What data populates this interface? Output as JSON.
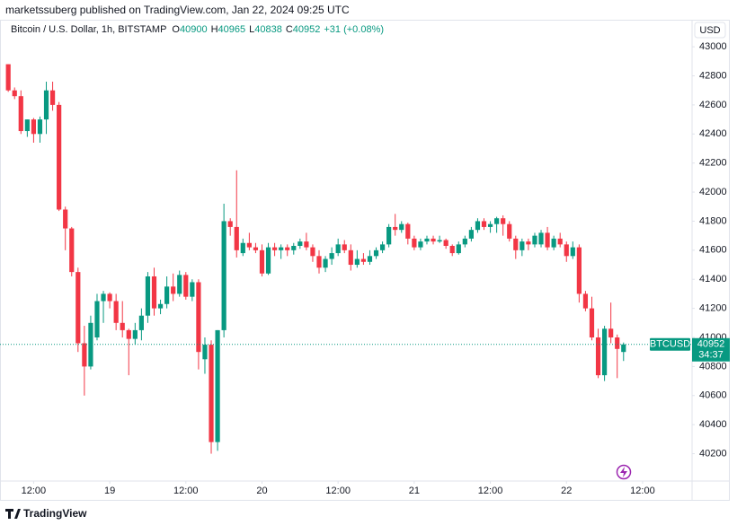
{
  "header": {
    "attribution": "marketssuberg published on TradingView.com, Jan 22, 2024 09:25 UTC"
  },
  "footer": {
    "brand": "TradingView"
  },
  "chart_data": {
    "type": "candlestick",
    "title": "Bitcoin / U.S. Dollar, 1h, BITSTAMP",
    "ohlc_labels": [
      "O",
      "H",
      "L",
      "C"
    ],
    "change": "+31 (+0.08%)",
    "symbol": "BTCUSD",
    "currency": "USD",
    "countdown": "34:37",
    "up_color": "#089981",
    "down_color": "#f23645",
    "open": [
      42880,
      42700,
      42660,
      42420,
      42500,
      42400,
      42500,
      42700,
      42600,
      41880,
      41750,
      41450,
      40960,
      40800,
      41000,
      41250,
      41300,
      41250,
      41100,
      41050,
      40990,
      41050,
      41150,
      41420,
      41200,
      41230,
      41350,
      41300,
      41430,
      41280,
      41380,
      40850,
      40950,
      40280,
      41050,
      41800,
      41760,
      41580,
      41650,
      41620,
      41600,
      41440,
      41620,
      41600,
      41620,
      41600,
      41630,
      41660,
      41620,
      41560,
      41480,
      41540,
      41580,
      41640,
      41600,
      41500,
      41540,
      41520,
      41560,
      41600,
      41640,
      41760,
      41740,
      41780,
      41680,
      41620,
      41660,
      41680,
      41660,
      41670,
      41630,
      41580,
      41640,
      41680,
      41740,
      41800,
      41760,
      41780,
      41820,
      41780,
      41680,
      41600,
      41660,
      41640,
      41640,
      41720,
      41620,
      41680,
      41640,
      41560,
      41620,
      41300,
      41200,
      41000,
      40740,
      41060,
      41000,
      40900
    ],
    "high": [
      42880,
      42720,
      42700,
      42500,
      42510,
      42520,
      42760,
      42760,
      42620,
      41900,
      41760,
      41480,
      41080,
      41150,
      41300,
      41320,
      41310,
      41300,
      41250,
      41060,
      41100,
      41200,
      41450,
      41480,
      41260,
      41420,
      41440,
      41460,
      41450,
      41400,
      41400,
      41000,
      40980,
      41050,
      41920,
      41820,
      42150,
      41680,
      41720,
      41650,
      41640,
      41650,
      41650,
      41640,
      41640,
      41650,
      41680,
      41720,
      41640,
      41600,
      41560,
      41620,
      41680,
      41670,
      41640,
      41600,
      41580,
      41600,
      41620,
      41660,
      41780,
      41850,
      41800,
      41790,
      41700,
      41680,
      41700,
      41700,
      41700,
      41680,
      41640,
      41660,
      41700,
      41760,
      41820,
      41820,
      41800,
      41830,
      41840,
      41800,
      41700,
      41680,
      41680,
      41720,
      41740,
      41760,
      41700,
      41720,
      41660,
      41660,
      41640,
      41320,
      41280,
      41060,
      41080,
      41240,
      41020,
      40965
    ],
    "low": [
      42690,
      42640,
      42400,
      42380,
      42340,
      42340,
      42400,
      42560,
      41870,
      41600,
      41420,
      40900,
      40600,
      40780,
      40980,
      41100,
      41200,
      41050,
      41000,
      40740,
      40950,
      40980,
      41100,
      41150,
      41160,
      41200,
      41250,
      41280,
      41260,
      41250,
      40780,
      40750,
      40200,
      40220,
      41000,
      41700,
      41550,
      41560,
      41600,
      41580,
      41420,
      41430,
      41560,
      41540,
      41560,
      41570,
      41610,
      41600,
      41520,
      41440,
      41450,
      41500,
      41560,
      41580,
      41460,
      41480,
      41500,
      41500,
      41540,
      41580,
      41620,
      41700,
      41720,
      41640,
      41600,
      41600,
      41640,
      41640,
      41650,
      41610,
      41560,
      41570,
      41620,
      41660,
      41720,
      41740,
      41720,
      41720,
      41700,
      41660,
      41540,
      41560,
      41600,
      41620,
      41620,
      41600,
      41600,
      41620,
      41520,
      41540,
      41240,
      41180,
      40980,
      40720,
      40700,
      40960,
      40720,
      40838
    ],
    "close": [
      42700,
      42660,
      42420,
      42500,
      42400,
      42500,
      42700,
      42600,
      41880,
      41750,
      41450,
      40960,
      40800,
      41100,
      41250,
      41300,
      41250,
      41100,
      41050,
      40990,
      41050,
      41150,
      41420,
      41200,
      41230,
      41350,
      41300,
      41430,
      41280,
      41380,
      40900,
      40950,
      40280,
      41050,
      41800,
      41760,
      41600,
      41650,
      41620,
      41600,
      41440,
      41620,
      41600,
      41620,
      41600,
      41630,
      41660,
      41620,
      41560,
      41480,
      41540,
      41580,
      41640,
      41600,
      41500,
      41540,
      41520,
      41560,
      41600,
      41640,
      41760,
      41740,
      41780,
      41680,
      41620,
      41660,
      41680,
      41660,
      41670,
      41630,
      41580,
      41640,
      41680,
      41740,
      41800,
      41760,
      41780,
      41820,
      41780,
      41680,
      41600,
      41660,
      41640,
      41700,
      41720,
      41620,
      41680,
      41640,
      41560,
      41620,
      41300,
      41200,
      41000,
      40740,
      41060,
      41000,
      40921,
      40952
    ],
    "xlim": [
      -1.3,
      107.8
    ],
    "xticks": [
      {
        "value": 4,
        "label": "12:00"
      },
      {
        "value": 16,
        "label": "19"
      },
      {
        "value": 28,
        "label": "12:00"
      },
      {
        "value": 40,
        "label": "20"
      },
      {
        "value": 52,
        "label": "12:00"
      },
      {
        "value": 64,
        "label": "21"
      },
      {
        "value": 76,
        "label": "12:00"
      },
      {
        "value": 88,
        "label": "22"
      },
      {
        "value": 100,
        "label": "12:00"
      }
    ],
    "ylim": [
      40012,
      43186
    ],
    "yticks": [
      40200,
      40400,
      40600,
      40800,
      41000,
      41200,
      41400,
      41600,
      41800,
      42000,
      42200,
      42400,
      42600,
      42800,
      43000
    ],
    "grid": false
  }
}
